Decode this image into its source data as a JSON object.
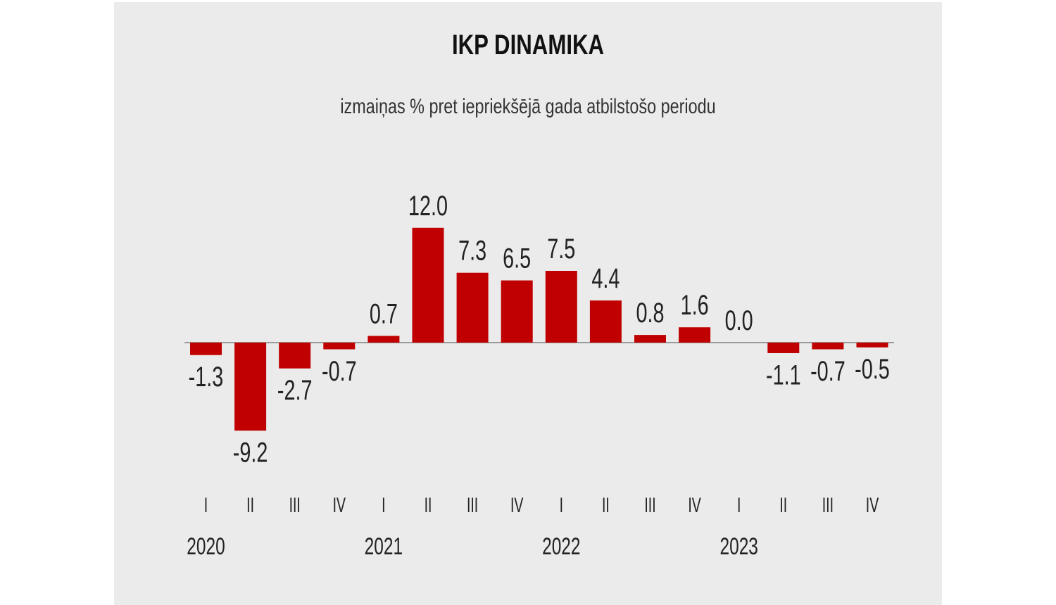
{
  "colors": {
    "background": "#ebebeb",
    "bar": "#c00000",
    "axis": "#9a9a9a",
    "text": "#222222"
  },
  "chart_data": {
    "type": "bar",
    "title": "IKP DINAMIKA",
    "subtitle": "izmaiņas % pret iepriekšējā gada atbilstošo periodu",
    "quarters": [
      "I",
      "II",
      "III",
      "IV",
      "I",
      "II",
      "III",
      "IV",
      "I",
      "II",
      "III",
      "IV",
      "I",
      "II",
      "III",
      "IV"
    ],
    "years": [
      "2020",
      "2021",
      "2022",
      "2023"
    ],
    "values": [
      -1.3,
      -9.2,
      -2.7,
      -0.7,
      0.7,
      12.0,
      7.3,
      6.5,
      7.5,
      4.4,
      0.8,
      1.6,
      0.0,
      -1.1,
      -0.7,
      -0.5
    ],
    "value_labels": [
      "-1.3",
      "-9.2",
      "-2.7",
      "-0.7",
      "0.7",
      "12.0",
      "7.3",
      "6.5",
      "7.5",
      "4.4",
      "0.8",
      "1.6",
      "0.0",
      "-1.1",
      "-0.7",
      "-0.5"
    ],
    "xlabel": "",
    "ylabel": ""
  }
}
